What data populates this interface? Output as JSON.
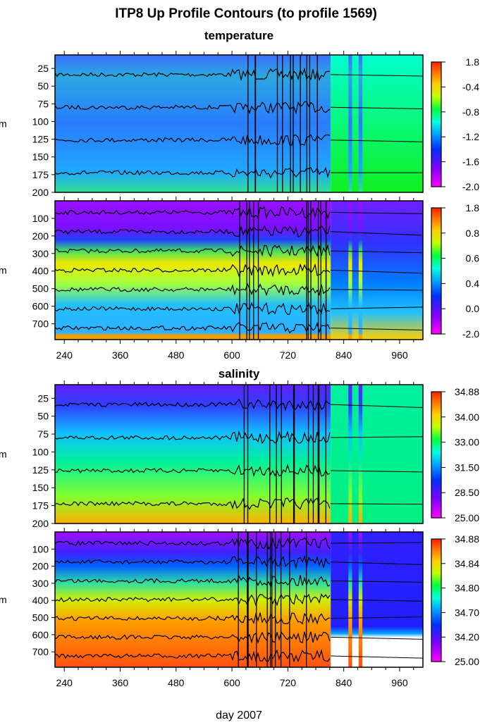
{
  "chart_data": {
    "type": "heatmap",
    "title": "ITP8 Up Profile Contours (to profile 1569)",
    "xlabel": "day 2007",
    "xlim": [
      220,
      1010
    ],
    "xticks": [
      240,
      360,
      480,
      600,
      720,
      840,
      960
    ],
    "grid": false,
    "panels": [
      {
        "group": "temperature",
        "ylabel": "m",
        "ylim": [
          200,
          6
        ],
        "yticks": [
          25,
          50,
          75,
          100,
          125,
          150,
          175,
          200
        ],
        "colorbar_ticks": [
          "1.8",
          "-0.4",
          "-0.8",
          "-1.2",
          "-1.6",
          "-2.0"
        ]
      },
      {
        "group": "temperature",
        "ylabel": "m",
        "ylim": [
          790,
          0
        ],
        "yticks": [
          100,
          200,
          300,
          400,
          500,
          600,
          700
        ],
        "colorbar_ticks": [
          "1.8",
          "0.8",
          "0.6",
          "0.4",
          "0.0",
          "-2.0"
        ]
      },
      {
        "group": "salinity",
        "ylabel": "m",
        "ylim": [
          200,
          6
        ],
        "yticks": [
          25,
          50,
          75,
          100,
          125,
          150,
          175,
          200
        ],
        "colorbar_ticks": [
          "34.88",
          "34.00",
          "33.00",
          "31.50",
          "28.50",
          "25.00"
        ]
      },
      {
        "group": "salinity",
        "ylabel": "m",
        "ylim": [
          790,
          0
        ],
        "yticks": [
          100,
          200,
          300,
          400,
          500,
          600,
          700
        ],
        "colorbar_ticks": [
          "34.88",
          "34.84",
          "34.80",
          "34.70",
          "34.20",
          "25.00"
        ]
      }
    ],
    "colormap": [
      "#ff00ff",
      "#8000ff",
      "#0030ff",
      "#00a0ff",
      "#00ffe0",
      "#00ff40",
      "#c0ff00",
      "#ffd000",
      "#ff7000",
      "#ff2000"
    ]
  },
  "titles": {
    "temperature": "temperature",
    "salinity": "salinity"
  }
}
